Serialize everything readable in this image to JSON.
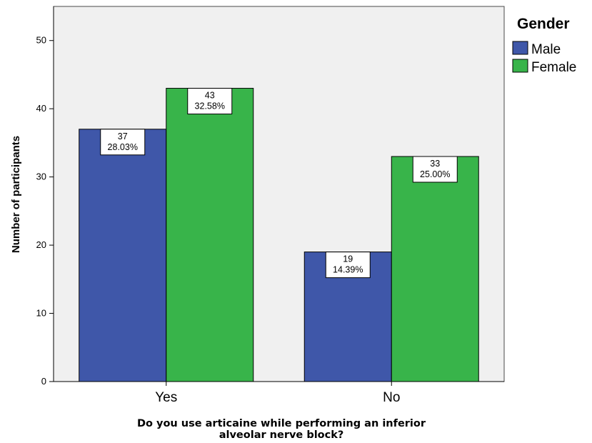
{
  "chart_data": {
    "type": "bar",
    "categories": [
      "Yes",
      "No"
    ],
    "series": [
      {
        "name": "Male",
        "color": "#3f57a9",
        "values": [
          37,
          19
        ],
        "labels": [
          [
            "37",
            "28.03%"
          ],
          [
            "19",
            "14.39%"
          ]
        ]
      },
      {
        "name": "Female",
        "color": "#38b44a",
        "values": [
          43,
          33
        ],
        "labels": [
          [
            "43",
            "32.58%"
          ],
          [
            "33",
            "25.00%"
          ]
        ]
      }
    ],
    "title": "",
    "xlabel": "Do you use articaine while performing an inferior alveolar nerve block?",
    "xlabel_lines": [
      "Do you use articaine while performing an inferior",
      "alveolar nerve block?"
    ],
    "ylabel": "Number of participants",
    "ylim": [
      0,
      55
    ],
    "yticks": [
      0,
      10,
      20,
      30,
      40,
      50
    ],
    "legend": {
      "title": "Gender",
      "position": "right"
    },
    "plot_background": "#f0f0f0",
    "grid": false
  }
}
